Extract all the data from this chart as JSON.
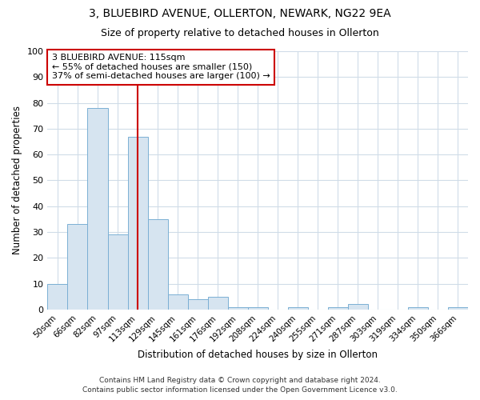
{
  "title1": "3, BLUEBIRD AVENUE, OLLERTON, NEWARK, NG22 9EA",
  "title2": "Size of property relative to detached houses in Ollerton",
  "xlabel": "Distribution of detached houses by size in Ollerton",
  "ylabel": "Number of detached properties",
  "categories": [
    "50sqm",
    "66sqm",
    "82sqm",
    "97sqm",
    "113sqm",
    "129sqm",
    "145sqm",
    "161sqm",
    "176sqm",
    "192sqm",
    "208sqm",
    "224sqm",
    "240sqm",
    "255sqm",
    "271sqm",
    "287sqm",
    "303sqm",
    "319sqm",
    "334sqm",
    "350sqm",
    "366sqm"
  ],
  "values": [
    10,
    33,
    78,
    29,
    67,
    35,
    6,
    4,
    5,
    1,
    1,
    0,
    1,
    0,
    1,
    2,
    0,
    0,
    1,
    0,
    1
  ],
  "bar_color": "#d6e4f0",
  "bar_edge_color": "#7bafd4",
  "vline_x_index": 4,
  "vline_color": "#cc0000",
  "annotation_line1": "3 BLUEBIRD AVENUE: 115sqm",
  "annotation_line2": "← 55% of detached houses are smaller (150)",
  "annotation_line3": "37% of semi-detached houses are larger (100) →",
  "annotation_box_color": "#cc0000",
  "footer_line1": "Contains HM Land Registry data © Crown copyright and database right 2024.",
  "footer_line2": "Contains public sector information licensed under the Open Government Licence v3.0.",
  "ylim": [
    0,
    100
  ],
  "background_color": "#ffffff",
  "grid_color": "#d0dce8"
}
